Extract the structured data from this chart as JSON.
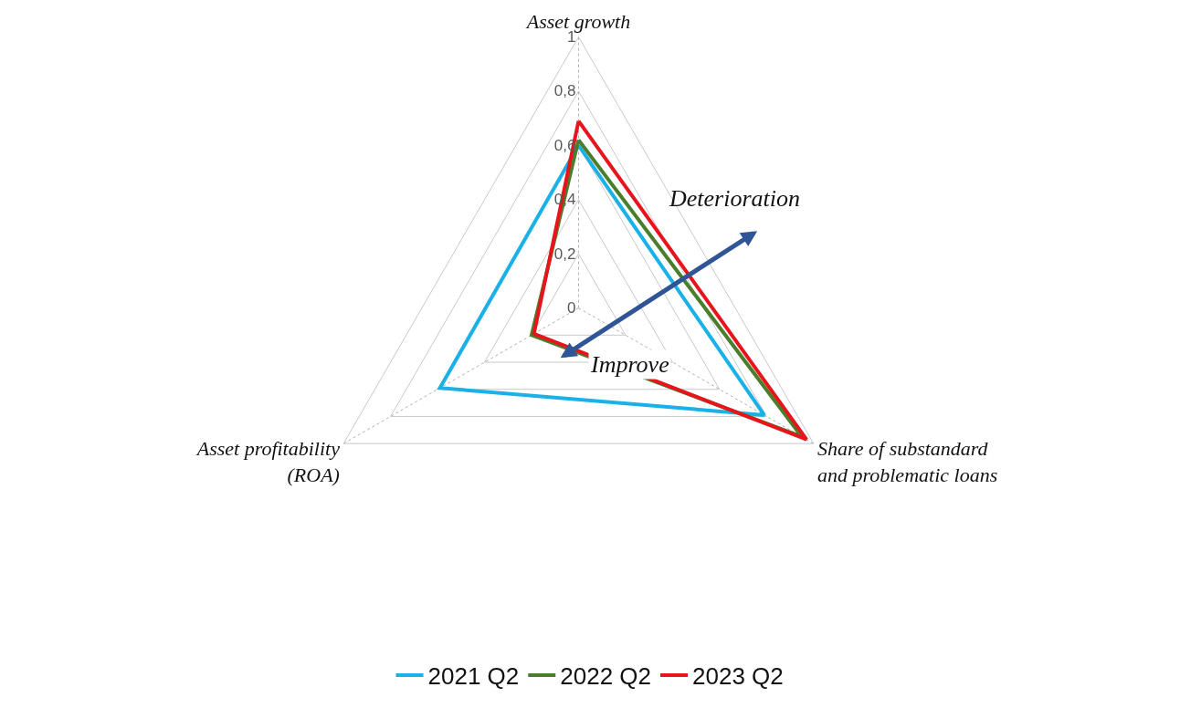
{
  "chart_data": {
    "type": "radar",
    "categories": [
      "Asset growth",
      "Share of substandard\nand problematic loans",
      "Asset profitability\n(ROA)"
    ],
    "series": [
      {
        "name": "2021 Q2",
        "color": "#1ab0e8",
        "values": [
          0.6,
          0.79,
          0.59
        ]
      },
      {
        "name": "2022 Q2",
        "color": "#4a7d2c",
        "values": [
          0.62,
          0.95,
          0.2
        ]
      },
      {
        "name": "2023 Q2",
        "color": "#e8141c",
        "values": [
          0.69,
          0.97,
          0.19
        ]
      }
    ],
    "ylim": [
      0,
      1
    ],
    "yticks": [
      0,
      {
        "value": 0.2,
        "label": "0,2"
      },
      {
        "value": 0.4,
        "label": "0,4"
      },
      {
        "value": 0.6,
        "label": "0,6"
      },
      {
        "value": 0.8,
        "label": "0,8"
      },
      1
    ],
    "annotations": [
      "Deterioration",
      "Improve"
    ],
    "grid": true,
    "legend": "bottom",
    "marker": "none",
    "line_style": "solid"
  }
}
